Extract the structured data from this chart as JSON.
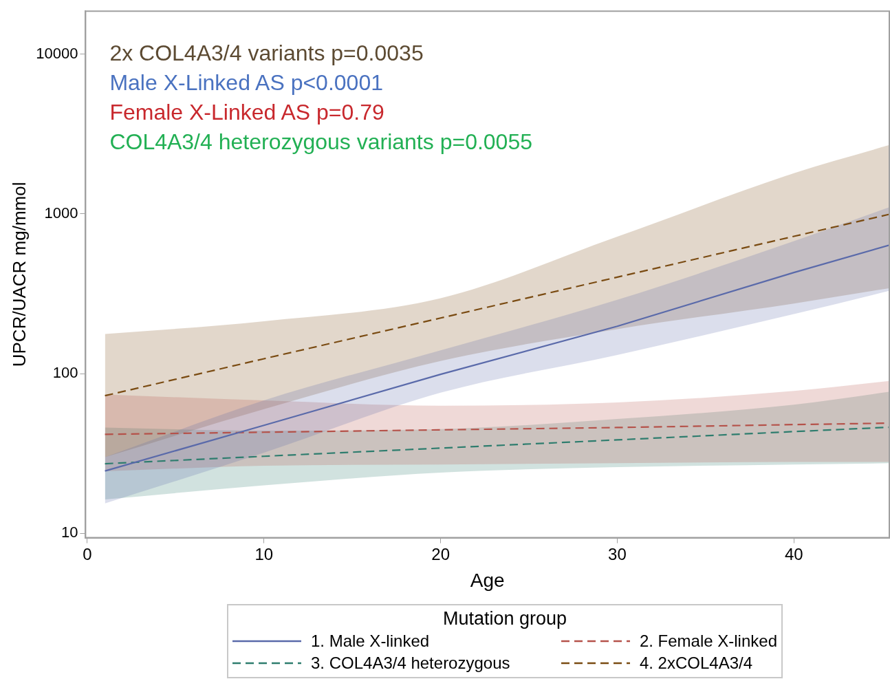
{
  "chart_data": {
    "type": "line",
    "xlabel": "Age",
    "ylabel": "UPCR/UACR mg/mmol",
    "legend_title": "Mutation group",
    "legend": "bottom",
    "log": "y",
    "grid": false,
    "marker": "none",
    "xlim": [
      -0.1,
      45.4
    ],
    "xticks": [
      0,
      10,
      20,
      30,
      40
    ],
    "ylim": [
      9.4,
      18600
    ],
    "yticks": [
      10,
      100,
      1000,
      10000
    ],
    "x": [
      1,
      10,
      20,
      30,
      40,
      45.4
    ],
    "series": [
      {
        "name": "1. Male X-linked",
        "color": "#5a6aaa",
        "line_style": "solid",
        "values": [
          24.6,
          47.5,
          99,
          198,
          430,
          638
        ],
        "lower": [
          15.4,
          32,
          76,
          131,
          236,
          330
        ],
        "upper": [
          30,
          68,
          140,
          290,
          675,
          1100
        ]
      },
      {
        "name": "2. Female X-linked",
        "color": "#b5524a",
        "line_style": "dashed",
        "values": [
          41.7,
          43,
          44.5,
          46,
          48,
          49
        ],
        "lower": [
          24.5,
          26.5,
          27,
          27.5,
          28,
          28
        ],
        "upper": [
          74,
          68,
          63,
          66,
          78,
          90
        ]
      },
      {
        "name": "3. COL4A3/4 heterozygous",
        "color": "#2e7d6e",
        "line_style": "dashed",
        "values": [
          27.3,
          30.4,
          34.2,
          38.5,
          43.4,
          46.2
        ],
        "lower": [
          16.3,
          20,
          24,
          26,
          27,
          27.5
        ],
        "upper": [
          46,
          44,
          45,
          52,
          64,
          77
        ]
      },
      {
        "name": "4. 2xCOL4A3/4",
        "color": "#7a4b12",
        "line_style": "dashed",
        "values": [
          72.8,
          124,
          223,
          402,
          724,
          995
        ],
        "lower": [
          30,
          60,
          120,
          190,
          275,
          343
        ],
        "upper": [
          177,
          213,
          297,
          720,
          1800,
          2700
        ]
      }
    ],
    "annotations": [
      "2x COL4A3/4 variants p=0.0035",
      "Male X-Linked AS p<0.0001",
      "Female X-Linked AS p=0.79",
      "COL4A3/4 heterozygous variants p=0.0055"
    ]
  }
}
